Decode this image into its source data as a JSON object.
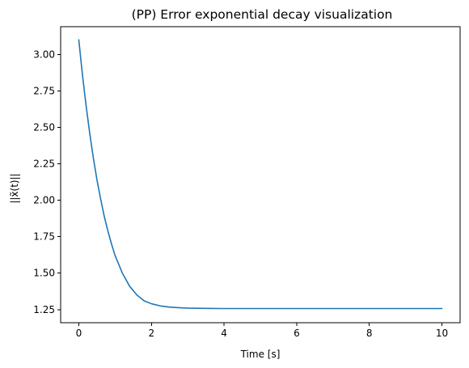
{
  "chart_data": {
    "type": "line",
    "title": "(PP) Error exponential decay visualization",
    "xlabel": "Time [s]",
    "ylabel": "||x̃(t)||",
    "xlim": [
      -0.5,
      10.5
    ],
    "ylim": [
      1.16,
      3.19
    ],
    "xticks": [
      0,
      2,
      4,
      6,
      8,
      10
    ],
    "xtick_labels": [
      "0",
      "2",
      "4",
      "6",
      "8",
      "10"
    ],
    "yticks": [
      1.25,
      1.5,
      1.75,
      2.0,
      2.25,
      2.5,
      2.75,
      3.0
    ],
    "ytick_labels": [
      "1.25",
      "1.50",
      "1.75",
      "2.00",
      "2.25",
      "2.50",
      "2.75",
      "3.00"
    ],
    "grid": false,
    "series": [
      {
        "color": "#1f77b4",
        "x": [
          0,
          0.1,
          0.2,
          0.3,
          0.4,
          0.5,
          0.6,
          0.7,
          0.8,
          0.9,
          1.0,
          1.2,
          1.4,
          1.6,
          1.8,
          2.0,
          2.25,
          2.5,
          2.75,
          3.0,
          3.5,
          4.0,
          4.5,
          5.0,
          6.0,
          7.0,
          8.0,
          9.0,
          10.0
        ],
        "y": [
          3.1,
          2.86,
          2.65,
          2.46,
          2.29,
          2.14,
          2.01,
          1.89,
          1.79,
          1.7,
          1.62,
          1.5,
          1.41,
          1.35,
          1.31,
          1.29,
          1.275,
          1.267,
          1.263,
          1.26,
          1.258,
          1.257,
          1.257,
          1.257,
          1.257,
          1.257,
          1.257,
          1.257,
          1.257
        ]
      }
    ]
  }
}
